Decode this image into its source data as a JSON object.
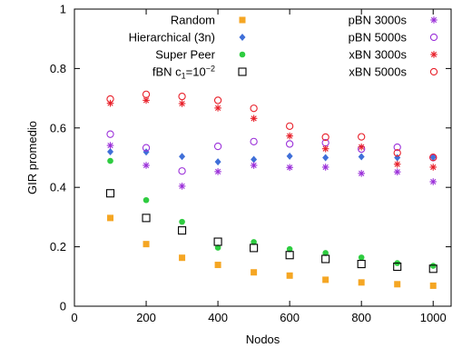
{
  "chart_data": {
    "type": "scatter",
    "title": "",
    "xlabel": "Nodos",
    "ylabel": "GIR promedio",
    "xlim": [
      0,
      1050
    ],
    "ylim": [
      0,
      1
    ],
    "xticks": [
      0,
      200,
      400,
      600,
      800,
      1000
    ],
    "yticks": [
      0,
      0.2,
      0.4,
      0.6,
      0.8,
      1
    ],
    "xtick_labels": [
      "0",
      "200",
      "400",
      "600",
      "800",
      "1000"
    ],
    "ytick_labels": [
      "0",
      "0.2",
      "0.4",
      "0.6",
      "0.8",
      "1"
    ],
    "grid": false,
    "legend_position": "top",
    "x": [
      100,
      200,
      300,
      400,
      500,
      600,
      700,
      800,
      900,
      1000
    ],
    "series": [
      {
        "name": "Random",
        "marker": "square-filled",
        "color": "#f5a623",
        "values": [
          0.297,
          0.209,
          0.163,
          0.139,
          0.114,
          0.103,
          0.089,
          0.08,
          0.074,
          0.069
        ]
      },
      {
        "name": "Hierarchical (3n)",
        "marker": "diamond-filled",
        "color": "#3f6fd8",
        "values": [
          0.52,
          0.519,
          0.504,
          0.486,
          0.494,
          0.505,
          0.5,
          0.503,
          0.5,
          0.501
        ]
      },
      {
        "name": "Super Peer",
        "marker": "circle-filled",
        "color": "#2ecc40",
        "values": [
          0.489,
          0.357,
          0.284,
          0.197,
          0.216,
          0.192,
          0.179,
          0.164,
          0.145,
          0.136
        ]
      },
      {
        "name": "fBN c1=10^-2",
        "marker": "square-open",
        "color": "#000000",
        "values": [
          0.38,
          0.297,
          0.255,
          0.217,
          0.196,
          0.172,
          0.159,
          0.142,
          0.133,
          0.126
        ]
      },
      {
        "name": "pBN 3000s",
        "marker": "asterisk",
        "color": "#9b30d9",
        "values": [
          0.541,
          0.474,
          0.404,
          0.453,
          0.474,
          0.467,
          0.468,
          0.447,
          0.452,
          0.419
        ]
      },
      {
        "name": "pBN 5000s",
        "marker": "circle-open",
        "color": "#9b30d9",
        "values": [
          0.579,
          0.533,
          0.455,
          0.538,
          0.554,
          0.546,
          0.55,
          0.529,
          0.535,
          0.5
        ]
      },
      {
        "name": "xBN 3000s",
        "marker": "asterisk",
        "color": "#e8202a",
        "values": [
          0.683,
          0.693,
          0.682,
          0.667,
          0.632,
          0.573,
          0.53,
          0.536,
          0.478,
          0.468
        ]
      },
      {
        "name": "xBN 5000s",
        "marker": "circle-open",
        "color": "#e8202a",
        "values": [
          0.697,
          0.713,
          0.706,
          0.693,
          0.666,
          0.606,
          0.569,
          0.57,
          0.516,
          0.501
        ]
      }
    ]
  }
}
